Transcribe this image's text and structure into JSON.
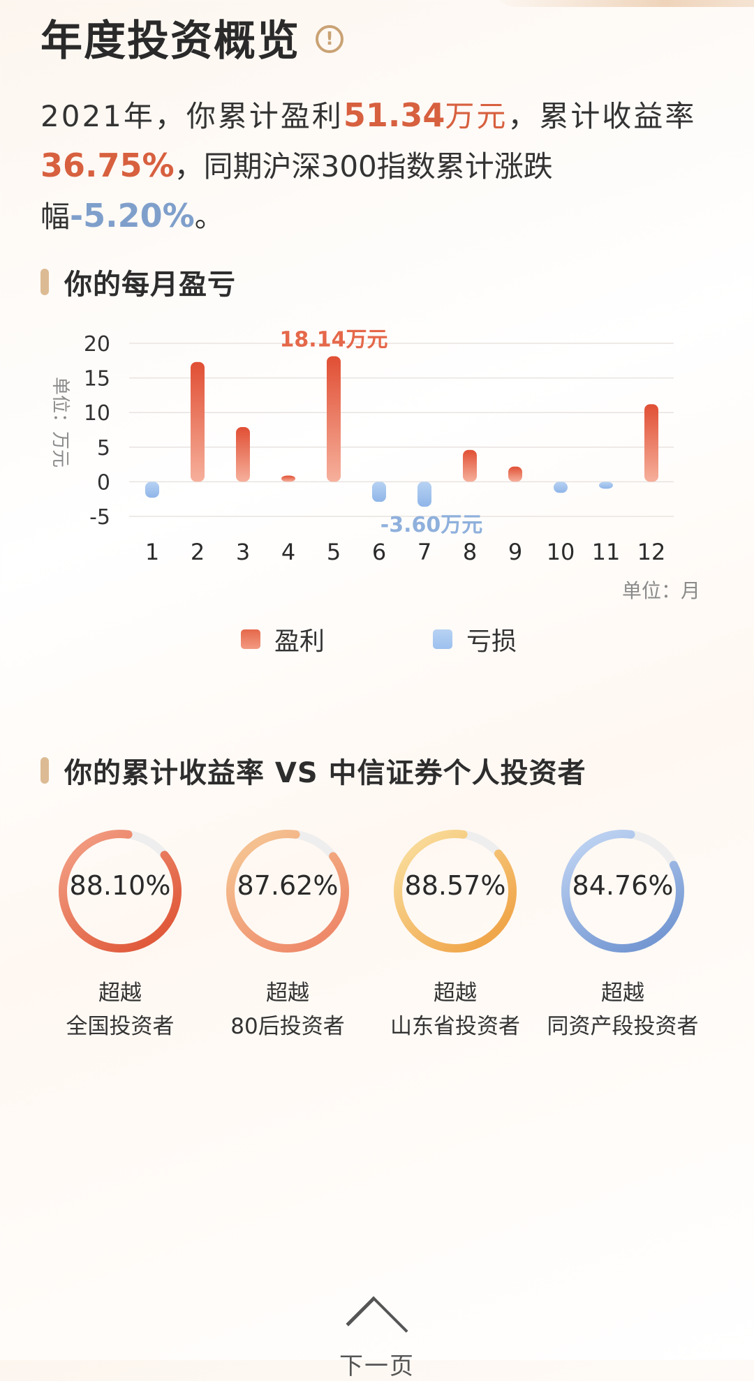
{
  "header": {
    "title": "年度投资概览",
    "info_icon": "!"
  },
  "summary": {
    "part1": "2021年，你累计盈利",
    "profit_value": "51.34",
    "profit_unit": "万元",
    "part2": "，累计收益率",
    "return_rate": "36.75%",
    "part3": "，同期沪深300指数累计涨跌幅",
    "index_change": "-5.20%",
    "part4": "。"
  },
  "monthly_section": {
    "title": "你的每月盈亏"
  },
  "chart_data": {
    "type": "bar",
    "title": "你的每月盈亏",
    "ylabel": "单位：万元",
    "xlabel": "单位：月",
    "categories": [
      "1",
      "2",
      "3",
      "4",
      "5",
      "6",
      "7",
      "8",
      "9",
      "10",
      "11",
      "12"
    ],
    "values": [
      -2.3,
      17.3,
      7.9,
      0.9,
      18.14,
      -2.9,
      -3.6,
      4.6,
      2.2,
      -1.6,
      -1.0,
      11.2
    ],
    "ylim": [
      -5,
      20
    ],
    "yticks": [
      "20",
      "15",
      "10",
      "5",
      "0",
      "-5"
    ],
    "annotations": [
      {
        "category": "5",
        "text": "18.14万元"
      },
      {
        "category": "7",
        "text": "-3.60万元"
      }
    ],
    "legend": [
      {
        "name": "盈利",
        "color": "#e5684a"
      },
      {
        "name": "亏损",
        "color": "#a8c8f2"
      }
    ],
    "colors": {
      "profit_top": "#e04f34",
      "profit_bottom": "#f6b09c",
      "loss_top": "#b7d2f3",
      "loss_bottom": "#8fb5e8"
    }
  },
  "compare_section": {
    "title": "你的累计收益率 VS 中信证券个人投资者",
    "items": [
      {
        "value": "88.10%",
        "line1": "超越",
        "line2": "全国投资者",
        "c1": "#f0977c",
        "c2": "#e05a3b",
        "percent": 88.1
      },
      {
        "value": "87.62%",
        "line1": "超越",
        "line2": "80后投资者",
        "c1": "#f5c08f",
        "c2": "#ee8a6a",
        "percent": 87.62
      },
      {
        "value": "88.57%",
        "line1": "超越",
        "line2": "山东省投资者",
        "c1": "#f8d894",
        "c2": "#f0a64a",
        "percent": 88.57
      },
      {
        "value": "84.76%",
        "line1": "超越",
        "line2": "同资产段投资者",
        "c1": "#b9cff0",
        "c2": "#7598d3",
        "percent": 84.76
      }
    ]
  },
  "footer": {
    "next_label": "下一页"
  }
}
